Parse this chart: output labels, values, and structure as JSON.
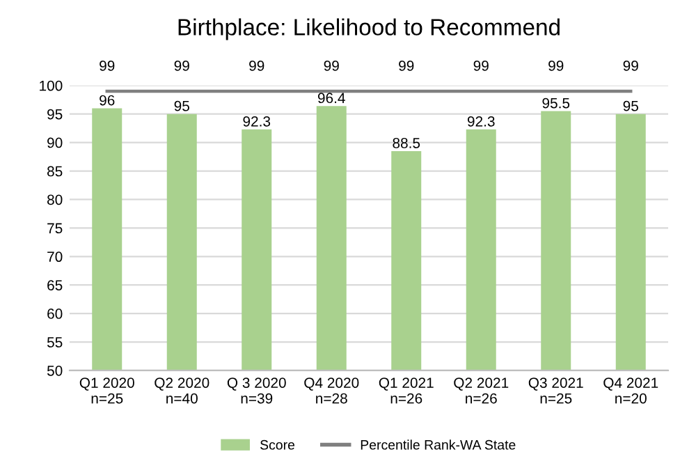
{
  "chart_data": {
    "type": "bar",
    "title": "Birthplace: Likelihood to Recommend",
    "categories": [
      "Q1 2020\nn=25",
      "Q2 2020\nn=40",
      "Q 3 2020\nn=39",
      "Q4 2020\nn=28",
      "Q1 2021\nn=26",
      "Q2 2021\nn=26",
      "Q3 2021\nn=25",
      "Q4 2021\nn=20"
    ],
    "series": [
      {
        "name": "Score",
        "color": "#a9d18e",
        "values": [
          96,
          95,
          92.3,
          96.4,
          88.5,
          92.3,
          95.5,
          95
        ]
      },
      {
        "name": "Percentile Rank-WA State",
        "type": "line",
        "color": "#7f7f7f",
        "values": [
          99,
          99,
          99,
          99,
          99,
          99,
          99,
          99
        ]
      }
    ],
    "ylim": [
      50,
      100
    ],
    "yticks": [
      50,
      55,
      60,
      65,
      70,
      75,
      80,
      85,
      90,
      95,
      100
    ],
    "grid": "y",
    "legend": "bottom",
    "data_labels": true
  }
}
